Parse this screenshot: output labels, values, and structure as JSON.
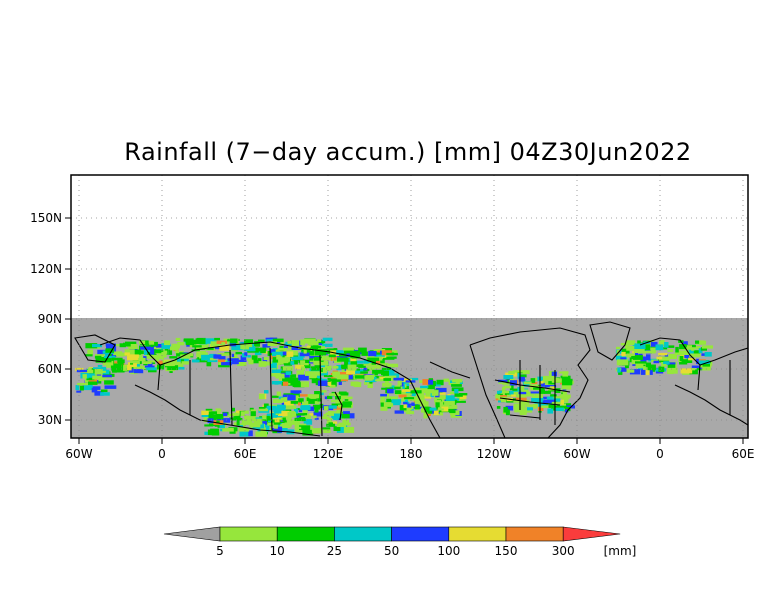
{
  "title": "Rainfall (7−day accum.) [mm] 04Z30Jun2022",
  "map": {
    "x_ticks": [
      "60W",
      "0",
      "60E",
      "120E",
      "180",
      "120W",
      "60W",
      "0",
      "60E"
    ],
    "y_ticks": [
      "30N",
      "60N",
      "90N",
      "120N",
      "150N"
    ],
    "no_data_color": "#a9a9a9",
    "land_outline_color": "#000000"
  },
  "colorbar": {
    "colors": [
      "#a0a0a0",
      "#96e63c",
      "#00cd00",
      "#00c8c8",
      "#1e3cff",
      "#e6dc32",
      "#f08228",
      "#fa3c3c"
    ],
    "labels": [
      "5",
      "10",
      "25",
      "50",
      "100",
      "150",
      "300"
    ],
    "unit": "[mm]"
  }
}
